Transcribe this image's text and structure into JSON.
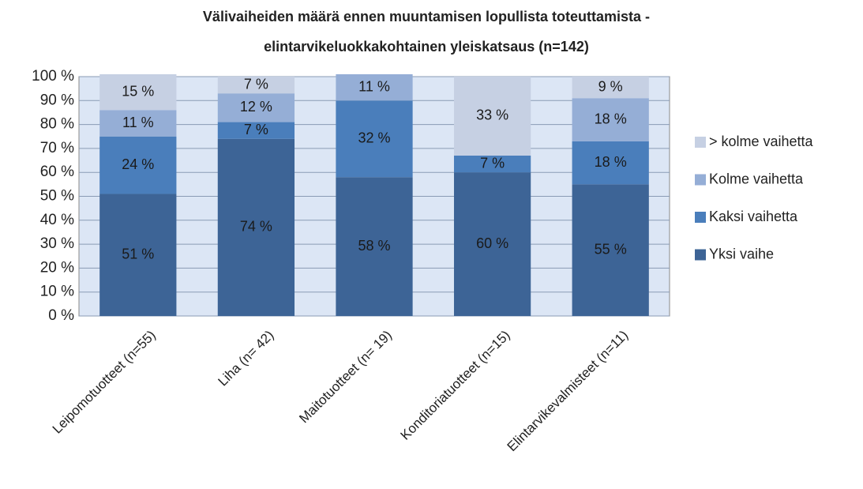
{
  "chart_data": {
    "type": "stacked_bar",
    "title": [
      "Välivaiheiden määrä ennen muuntamisen lopullista toteuttamista -",
      "elintarvikeluokkakohtainen yleiskatsaus (n=142)"
    ],
    "categories": [
      "Leipomotuotteet (n=55)",
      "Liha (n= 42)",
      "Maitotuotteet (n= 19)",
      "Konditoriatuotteet (n=15)",
      "Elintarvikevalmisteet (n=11)"
    ],
    "series": [
      {
        "name": "Yksi vaihe",
        "color": "#3d6496",
        "values": [
          51,
          74,
          58,
          60,
          55
        ],
        "value_labels": [
          "51 %",
          "74 %",
          "58 %",
          "60 %",
          "55 %"
        ]
      },
      {
        "name": "Kaksi vaihetta",
        "color": "#4a7ebb",
        "values": [
          24,
          7,
          32,
          7,
          18
        ],
        "value_labels": [
          "24 %",
          "7 %",
          "32 %",
          "7 %",
          "18 %"
        ]
      },
      {
        "name": "Kolme vaihetta",
        "color": "#95aed6",
        "values": [
          11,
          12,
          11,
          0,
          18
        ],
        "value_labels": [
          "11 %",
          "12 %",
          "11 %",
          null,
          "18 %"
        ]
      },
      {
        "name": "> kolme vaihetta",
        "color": "#c6d0e3",
        "values": [
          15,
          7,
          0,
          33,
          9
        ],
        "value_labels": [
          "15 %",
          "7 %",
          null,
          "33 %",
          "9 %"
        ]
      }
    ],
    "ylim": [
      0,
      100
    ],
    "yticks": [
      {
        "value": 0,
        "label": "0 %"
      },
      {
        "value": 10,
        "label": "10 %"
      },
      {
        "value": 20,
        "label": "20 %"
      },
      {
        "value": 30,
        "label": "30 %"
      },
      {
        "value": 40,
        "label": "40 %"
      },
      {
        "value": 50,
        "label": "50 %"
      },
      {
        "value": 60,
        "label": "60 %"
      },
      {
        "value": 70,
        "label": "70 %"
      },
      {
        "value": 80,
        "label": "80 %"
      },
      {
        "value": 90,
        "label": "90 %"
      },
      {
        "value": 100,
        "label": "100 %"
      }
    ],
    "grid": true,
    "legend": "right"
  }
}
